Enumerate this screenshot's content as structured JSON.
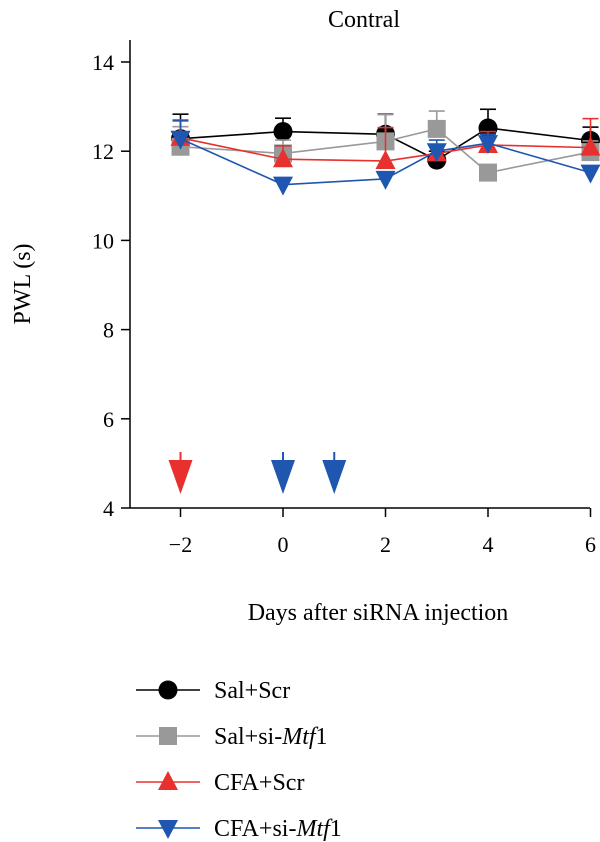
{
  "chart_data": {
    "type": "line",
    "title": "Contral",
    "xlabel": "Days after siRNA injection",
    "ylabel": "PWL (s)",
    "xlim": [
      -3,
      6
    ],
    "ylim": [
      4,
      14.5
    ],
    "xticks": [
      "−2",
      "0",
      "2",
      "4",
      "6"
    ],
    "yticks": [
      "4",
      "6",
      "8",
      "10",
      "12",
      "14"
    ],
    "x": [
      -2,
      0,
      2,
      3,
      4,
      6
    ],
    "series": [
      {
        "name": "Sal+Scr",
        "name_prefix": "Sal+Scr",
        "name_italic": "",
        "name_suffix": "",
        "color": "#000000",
        "marker": "circle",
        "values": [
          12.28,
          12.44,
          12.38,
          11.8,
          12.52,
          12.24
        ],
        "errors": [
          0.55,
          0.3,
          0.45,
          0.2,
          0.42,
          0.3
        ]
      },
      {
        "name": "Sal+si-Mtf1",
        "name_prefix": "Sal+si-",
        "name_italic": "Mtf",
        "name_suffix": "1",
        "color": "#999999",
        "marker": "square",
        "values": [
          12.1,
          11.95,
          12.22,
          12.5,
          11.52,
          11.98
        ],
        "errors": [
          0.45,
          0.3,
          0.6,
          0.4,
          0.15,
          0.25
        ]
      },
      {
        "name": "CFA+Scr",
        "name_prefix": "CFA+Scr",
        "name_italic": "",
        "name_suffix": "",
        "color": "#e8302f",
        "marker": "triangle-up",
        "values": [
          12.3,
          11.82,
          11.78,
          11.95,
          12.14,
          12.08
        ],
        "errors": [
          0.4,
          0.3,
          0.75,
          0.2,
          0.3,
          0.65
        ]
      },
      {
        "name": "CFA+si-Mtf1",
        "name_prefix": "CFA+si-",
        "name_italic": "Mtf",
        "name_suffix": "1",
        "color": "#1f56b0",
        "marker": "triangle-down",
        "values": [
          12.28,
          11.25,
          11.38,
          12.0,
          12.18,
          11.52
        ],
        "errors": [
          0.4,
          0.0,
          0.0,
          0.25,
          0.2,
          0.0
        ]
      }
    ],
    "injection_arrows": [
      {
        "x": -2,
        "color": "#e8302f"
      },
      {
        "x": 0,
        "color": "#1f56b0"
      },
      {
        "x": 1,
        "color": "#1f56b0"
      }
    ],
    "grid": false,
    "legend_position": "bottom"
  }
}
